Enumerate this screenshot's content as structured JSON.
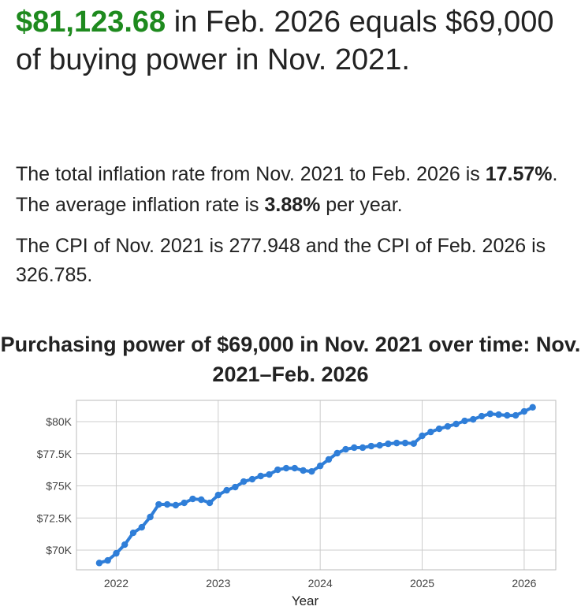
{
  "headline": {
    "amount": "$81,123.68",
    "rest": " in Feb. 2026 equals $69,000 of buying power in Nov. 2021."
  },
  "summary": {
    "p1_a": "The total inflation rate from Nov. 2021 to Feb. 2026 is ",
    "total_rate": "17.57%",
    "p1_b": ". The average inflation rate is ",
    "avg_rate": "3.88%",
    "p1_c": " per year.",
    "p2": "The CPI of Nov. 2021 is 277.948 and the CPI of Feb. 2026 is 326.785."
  },
  "colors": {
    "amount": "#1e8a1e",
    "line": "#2f7ed8",
    "grid": "#cccccc"
  },
  "chart_data": {
    "type": "line",
    "title": "Purchasing power of $69,000 in Nov. 2021 over time: Nov. 2021–Feb. 2026",
    "xlabel": "Year",
    "ylabel": "",
    "x_ticks": [
      "2022",
      "2023",
      "2024",
      "2025",
      "2026"
    ],
    "y_ticks": [
      {
        "value": 70,
        "label": "$70K"
      },
      {
        "value": 72.5,
        "label": "$72.5K"
      },
      {
        "value": 75,
        "label": "$75K"
      },
      {
        "value": 77.5,
        "label": "$77.5K"
      },
      {
        "value": 80,
        "label": "$80K"
      }
    ],
    "y_unit": "thousands of dollars",
    "xlim": [
      2021.61,
      2026.31
    ],
    "ylim": [
      68.47,
      81.66
    ],
    "grid": true,
    "start": "2021-11",
    "frequency": "monthly",
    "values": [
      69.0,
      69.2,
      69.75,
      70.43,
      71.35,
      71.78,
      72.58,
      73.56,
      73.56,
      73.5,
      73.68,
      73.99,
      73.93,
      73.68,
      74.29,
      74.66,
      74.91,
      75.34,
      75.52,
      75.77,
      75.89,
      76.26,
      76.38,
      76.38,
      76.2,
      76.13,
      76.56,
      77.06,
      77.55,
      77.85,
      77.98,
      77.98,
      78.1,
      78.16,
      78.28,
      78.34,
      78.34,
      78.3,
      78.9,
      79.2,
      79.45,
      79.63,
      79.82,
      80.06,
      80.18,
      80.43,
      80.61,
      80.55,
      80.49,
      80.49,
      80.8,
      81.12
    ]
  }
}
